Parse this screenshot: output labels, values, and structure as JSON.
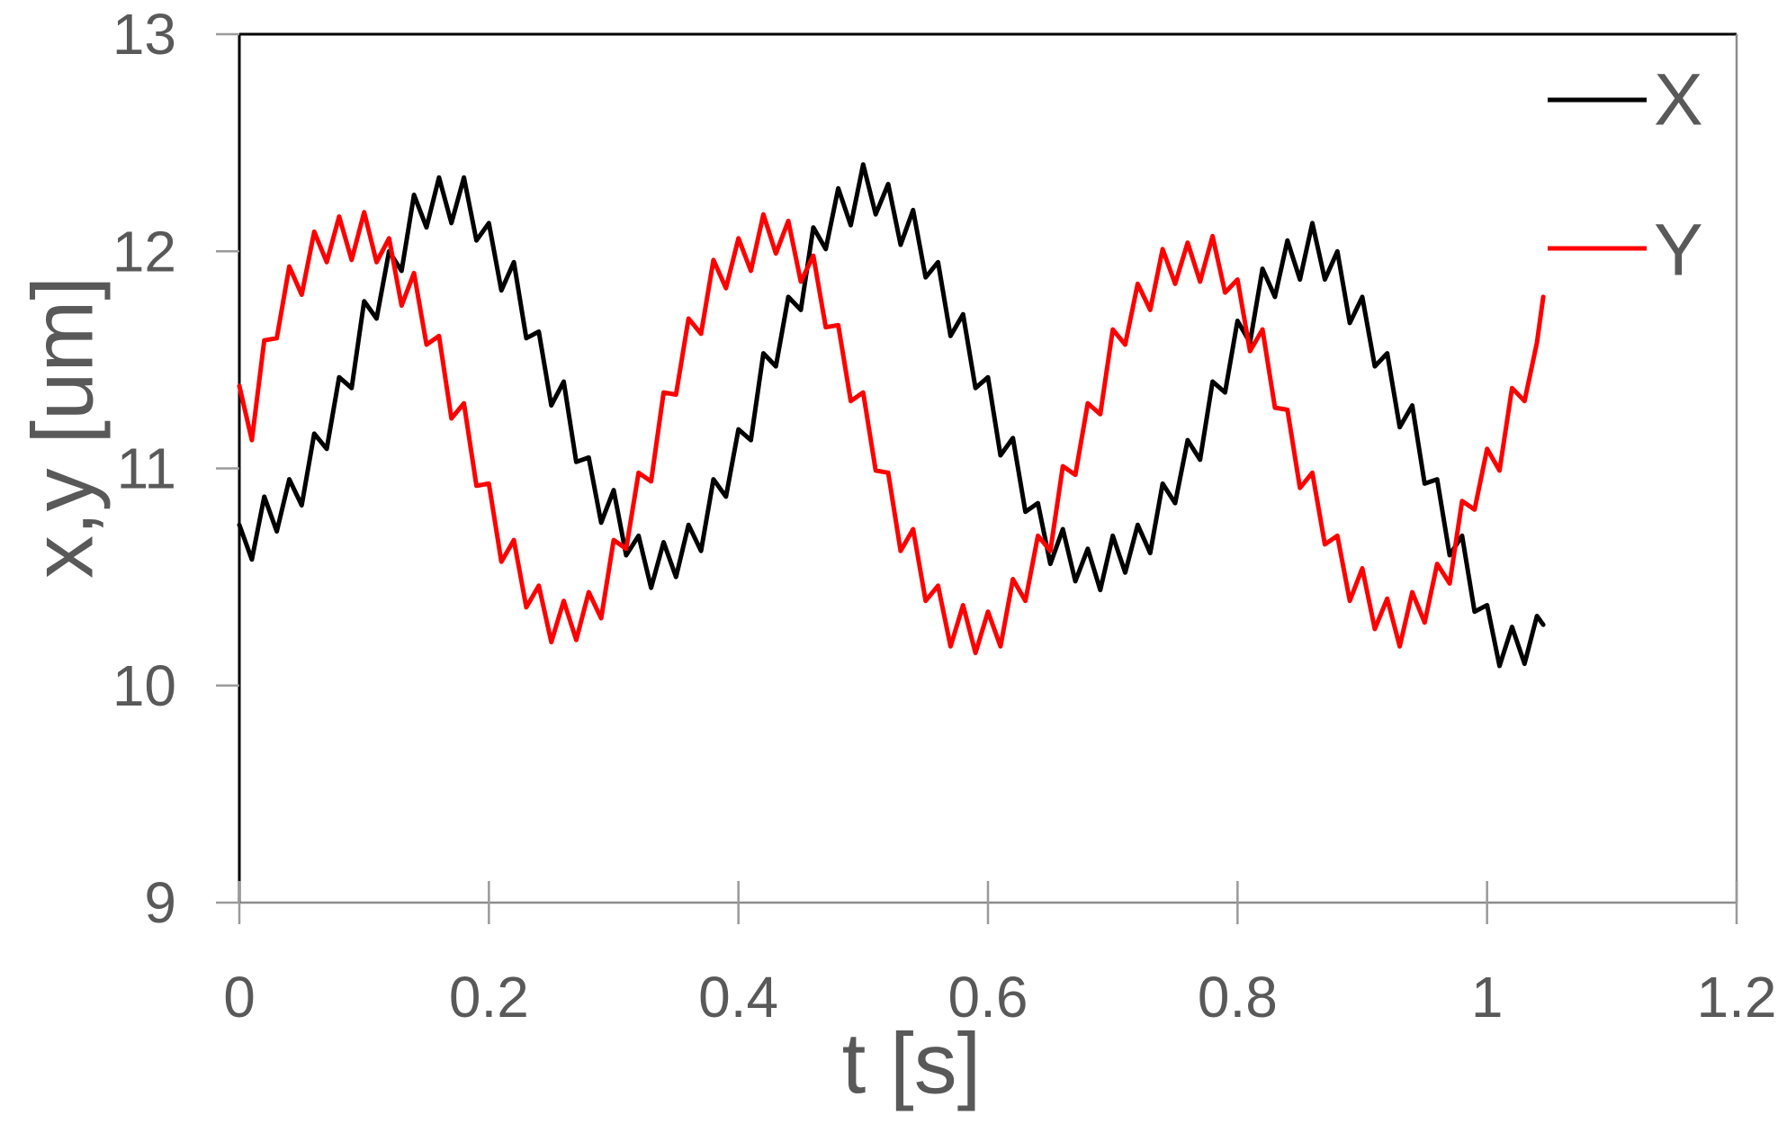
{
  "chart_data": {
    "type": "line",
    "xlabel": "t [s]",
    "ylabel": "x,y [um]",
    "xlim": [
      0,
      1.2
    ],
    "ylim": [
      9,
      13
    ],
    "x_ticks": [
      "0",
      "0.2",
      "0.4",
      "0.6",
      "0.8",
      "1",
      "1.2"
    ],
    "y_ticks": [
      "9",
      "10",
      "11",
      "12",
      "13"
    ],
    "grid": false,
    "legend": "top-right",
    "x": [
      0,
      0.01,
      0.02,
      0.03,
      0.04,
      0.05,
      0.06,
      0.07,
      0.08,
      0.09,
      0.1,
      0.11,
      0.12,
      0.13,
      0.14,
      0.15,
      0.16,
      0.17,
      0.18,
      0.19,
      0.2,
      0.21,
      0.22,
      0.23,
      0.24,
      0.25,
      0.26,
      0.27,
      0.28,
      0.29,
      0.3,
      0.31,
      0.32,
      0.33,
      0.34,
      0.35,
      0.36,
      0.37,
      0.38,
      0.39,
      0.4,
      0.41,
      0.42,
      0.43,
      0.44,
      0.45,
      0.46,
      0.47,
      0.48,
      0.49,
      0.5,
      0.51,
      0.52,
      0.53,
      0.54,
      0.55,
      0.56,
      0.57,
      0.58,
      0.59,
      0.6,
      0.61,
      0.62,
      0.63,
      0.64,
      0.65,
      0.66,
      0.67,
      0.68,
      0.69,
      0.7,
      0.71,
      0.72,
      0.73,
      0.74,
      0.75,
      0.76,
      0.77,
      0.78,
      0.79,
      0.8,
      0.81,
      0.82,
      0.83,
      0.84,
      0.85,
      0.86,
      0.87,
      0.88,
      0.89,
      0.9,
      0.91,
      0.92,
      0.93,
      0.94,
      0.95,
      0.96,
      0.97,
      0.98,
      0.99,
      1,
      1.01,
      1.02,
      1.03,
      1.04,
      1.045
    ],
    "series": [
      {
        "name": "X",
        "color": "#000000",
        "values": [
          10.74,
          10.58,
          10.87,
          10.71,
          10.95,
          10.83,
          11.16,
          11.09,
          11.42,
          11.37,
          11.77,
          11.69,
          12.0,
          11.91,
          12.26,
          12.11,
          12.34,
          12.13,
          12.34,
          12.05,
          12.13,
          11.82,
          11.95,
          11.6,
          11.63,
          11.29,
          11.4,
          11.03,
          11.05,
          10.75,
          10.9,
          10.6,
          10.69,
          10.45,
          10.66,
          10.5,
          10.74,
          10.62,
          10.95,
          10.87,
          11.18,
          11.13,
          11.53,
          11.47,
          11.79,
          11.73,
          12.11,
          12.01,
          12.29,
          12.12,
          12.4,
          12.17,
          12.31,
          12.03,
          12.19,
          11.88,
          11.95,
          11.61,
          11.71,
          11.37,
          11.42,
          11.06,
          11.14,
          10.8,
          10.84,
          10.56,
          10.72,
          10.48,
          10.63,
          10.44,
          10.69,
          10.52,
          10.74,
          10.61,
          10.93,
          10.84,
          11.13,
          11.04,
          11.4,
          11.35,
          11.68,
          11.58,
          11.92,
          11.79,
          12.05,
          11.87,
          12.13,
          11.87,
          12.0,
          11.67,
          11.79,
          11.47,
          11.53,
          11.19,
          11.29,
          10.93,
          10.95,
          10.6,
          10.69,
          10.34,
          10.37,
          10.09,
          10.27,
          10.1,
          10.32,
          10.28
        ]
      },
      {
        "name": "Y",
        "color": "#ff0000",
        "values": [
          11.38,
          11.13,
          11.59,
          11.6,
          11.93,
          11.8,
          12.09,
          11.95,
          12.16,
          11.96,
          12.18,
          11.95,
          12.06,
          11.75,
          11.9,
          11.57,
          11.61,
          11.23,
          11.3,
          10.92,
          10.93,
          10.57,
          10.67,
          10.36,
          10.46,
          10.2,
          10.39,
          10.21,
          10.43,
          10.31,
          10.67,
          10.63,
          10.98,
          10.94,
          11.35,
          11.34,
          11.69,
          11.62,
          11.96,
          11.83,
          12.06,
          11.91,
          12.17,
          11.99,
          12.14,
          11.86,
          11.98,
          11.65,
          11.66,
          11.31,
          11.35,
          10.99,
          10.98,
          10.62,
          10.72,
          10.39,
          10.46,
          10.18,
          10.37,
          10.15,
          10.34,
          10.18,
          10.49,
          10.39,
          10.69,
          10.62,
          11.01,
          10.97,
          11.3,
          11.25,
          11.64,
          11.57,
          11.85,
          11.73,
          12.01,
          11.85,
          12.04,
          11.86,
          12.07,
          11.81,
          11.87,
          11.54,
          11.64,
          11.28,
          11.27,
          10.91,
          10.98,
          10.65,
          10.69,
          10.39,
          10.54,
          10.26,
          10.4,
          10.18,
          10.43,
          10.29,
          10.56,
          10.47,
          10.85,
          10.81,
          11.09,
          10.99,
          11.37,
          11.31,
          11.58,
          11.79
        ]
      }
    ]
  }
}
